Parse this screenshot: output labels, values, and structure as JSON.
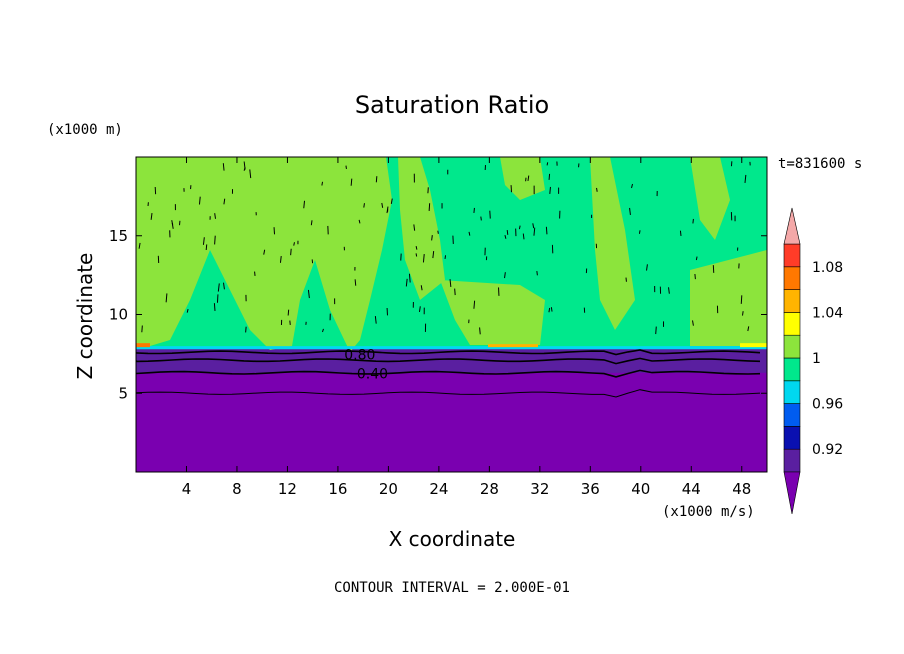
{
  "chart_data": {
    "type": "contour",
    "title": "Saturation Ratio",
    "xlabel": "X coordinate",
    "ylabel": "Z coordinate",
    "x_unit_label": "(x1000 m/s)",
    "y_unit_label": "(x1000 m)",
    "time_label": "t=831600 s",
    "footer": "CONTOUR INTERVAL = 2.000E-01",
    "xlim": [
      0,
      50
    ],
    "ylim": [
      0,
      20
    ],
    "x_ticks": [
      4,
      8,
      12,
      16,
      20,
      24,
      28,
      32,
      36,
      40,
      44,
      48
    ],
    "y_ticks": [
      5,
      10,
      15
    ],
    "contour_labels": [
      {
        "text": "0.80",
        "x": 16.5,
        "y": 7.4
      },
      {
        "text": "0.40",
        "x": 17.5,
        "y": 6.2
      }
    ],
    "contour_lines_z": [
      7.6,
      7.1,
      6.3,
      5.0
    ],
    "cloud_base_z": 7.8,
    "colorbar": {
      "levels": [
        0.9,
        0.92,
        0.94,
        0.96,
        0.98,
        1.0,
        1.02,
        1.04,
        1.06,
        1.08,
        1.1
      ],
      "tick_labels": [
        "0.92",
        "0.96",
        "1",
        "1.04",
        "1.08"
      ],
      "colors": [
        "#5a1fa0",
        "#0a10b0",
        "#005cf0",
        "#00d8f0",
        "#00e88c",
        "#8ce43c",
        "#ffff00",
        "#ffb400",
        "#ff7800",
        "#ff3c28"
      ],
      "under_color": "#7a00b0",
      "over_color": "#f4a8a8"
    },
    "field_colors": {
      "below": "#7a00b0",
      "below_band": "#5a1fa0",
      "green": "#00e88c",
      "lime": "#8ce43c"
    }
  }
}
